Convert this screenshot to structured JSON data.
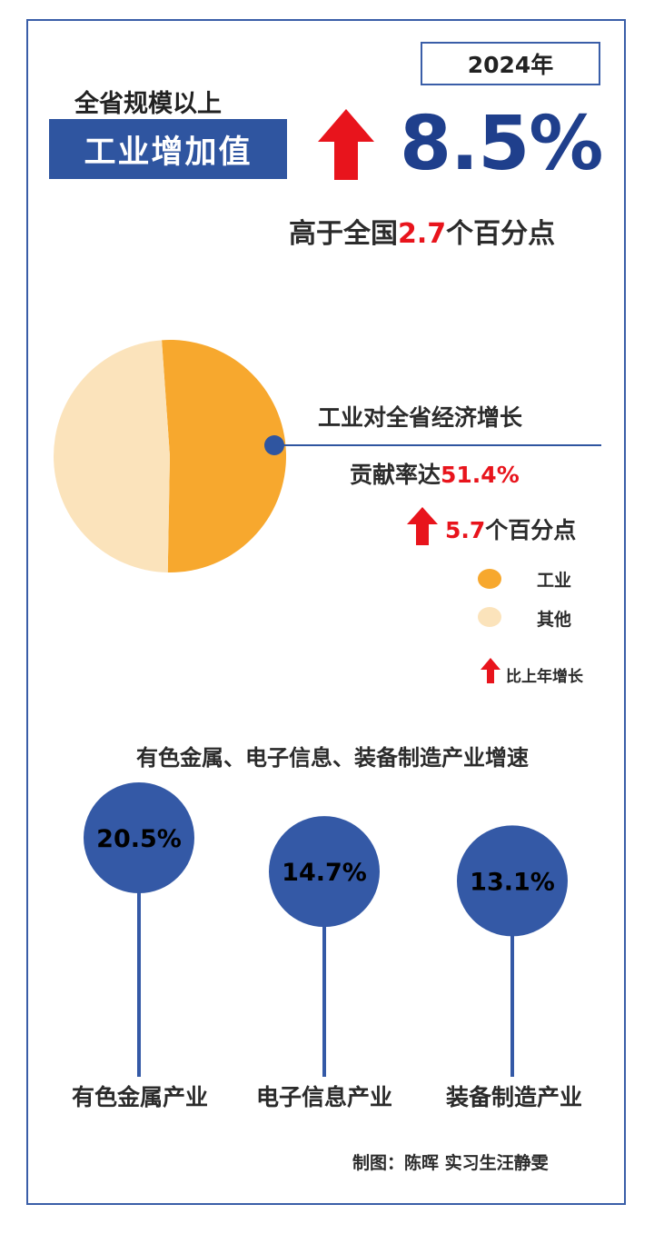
{
  "header": {
    "year": "2024年",
    "subtitle": "全省规模以上",
    "title": "工业增加值",
    "growth_value": "8.5%",
    "compare_prefix": "高于全国",
    "compare_value": "2.7",
    "compare_suffix": "个百分点"
  },
  "contribution": {
    "line1": "工业对全省经济增长",
    "line2_prefix": "贡献率达",
    "line2_value": "51.4%",
    "increase_value": "5.7",
    "increase_suffix": "个百分点"
  },
  "legend": {
    "items": [
      {
        "label": "工业",
        "color": "#f7a82e"
      },
      {
        "label": "其他",
        "color": "#fbe3bb"
      }
    ],
    "note": "比上年增长"
  },
  "industries": {
    "title": "有色金属、电子信息、装备制造产业增速"
  },
  "credit": "制图：陈晖 实习生汪静雯",
  "colors": {
    "accent": "#2f55a0",
    "red": "#e8141c",
    "dark_blue": "#1f3f8c"
  },
  "chart_data": [
    {
      "type": "pie",
      "labels": [
        "工业",
        "其他"
      ],
      "values": [
        51.4,
        48.6
      ],
      "colors": [
        "#f7a82e",
        "#fbe3bb"
      ],
      "legend": "right"
    },
    {
      "type": "bar",
      "categories": [
        "有色金属产业",
        "电子信息产业",
        "装备制造产业"
      ],
      "values": [
        20.5,
        14.7,
        13.1
      ],
      "labels": [
        "20.5%",
        "14.7%",
        "13.1%"
      ],
      "unit": "%",
      "color": "#3459a6"
    }
  ]
}
